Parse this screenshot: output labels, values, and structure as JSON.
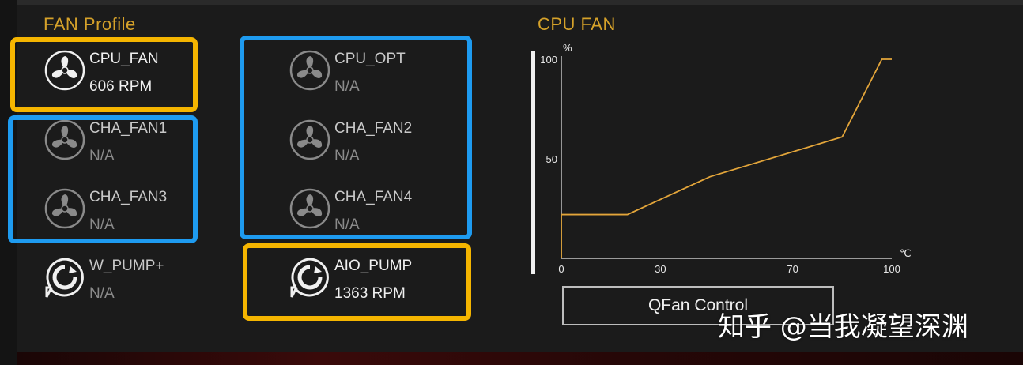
{
  "fan_profile": {
    "heading": "FAN Profile",
    "fans": [
      {
        "name": "CPU_FAN",
        "value": "606 RPM",
        "icon": "fan-icon"
      },
      {
        "name": "CPU_OPT",
        "value": "N/A",
        "icon": "fan-icon"
      },
      {
        "name": "CHA_FAN1",
        "value": "N/A",
        "icon": "fan-icon"
      },
      {
        "name": "CHA_FAN2",
        "value": "N/A",
        "icon": "fan-icon"
      },
      {
        "name": "CHA_FAN3",
        "value": "N/A",
        "icon": "fan-icon"
      },
      {
        "name": "CHA_FAN4",
        "value": "N/A",
        "icon": "fan-icon"
      },
      {
        "name": "W_PUMP+",
        "value": "N/A",
        "icon": "pump-icon"
      },
      {
        "name": "AIO_PUMP",
        "value": "1363 RPM",
        "icon": "pump-icon"
      }
    ]
  },
  "cpu_fan_chart": {
    "heading": "CPU FAN",
    "qfan_label": "QFan Control",
    "chart_data": {
      "type": "line",
      "title": "",
      "xlabel": "",
      "ylabel": "",
      "y_unit": "%",
      "x_unit": "℃",
      "xlim": [
        0,
        100
      ],
      "ylim": [
        0,
        100
      ],
      "x_ticks": [
        0,
        30,
        70,
        100
      ],
      "y_ticks": [
        100,
        50
      ],
      "grid": false,
      "color": "#e3a53a",
      "series": [
        {
          "x": [
            0,
            0,
            20,
            45,
            85,
            97,
            100
          ],
          "y": [
            0,
            22,
            22,
            41,
            61,
            100,
            100
          ]
        }
      ]
    }
  },
  "watermark": "知乎 @当我凝望深渊",
  "colors": {
    "accent": "#d6a22a",
    "highlight_yellow": "#f5b500",
    "highlight_blue": "#1e9bf0"
  }
}
